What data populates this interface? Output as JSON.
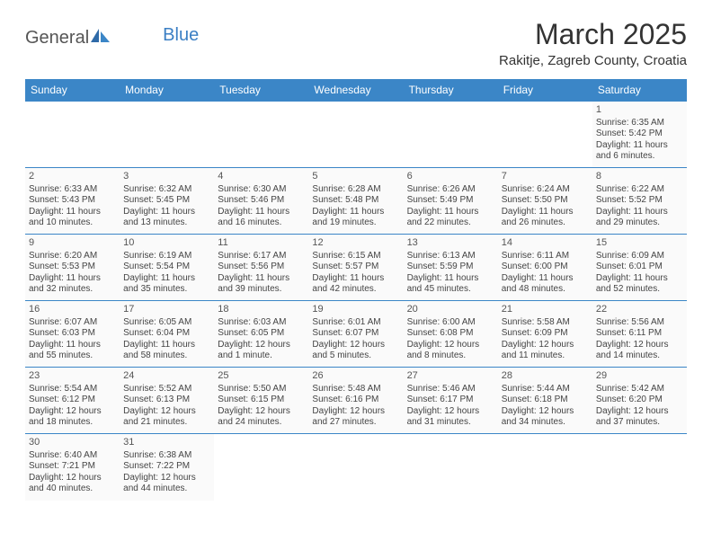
{
  "logo": {
    "part1": "General",
    "part2": "Blue"
  },
  "title": "March 2025",
  "location": "Rakitje, Zagreb County, Croatia",
  "colors": {
    "header_bg": "#3b86c7",
    "header_text": "#ffffff",
    "border": "#3b86c7",
    "cell_bg": "#fafafa",
    "text": "#444444",
    "logo_gray": "#555555",
    "logo_blue": "#3b7fc4"
  },
  "weekdays": [
    "Sunday",
    "Monday",
    "Tuesday",
    "Wednesday",
    "Thursday",
    "Friday",
    "Saturday"
  ],
  "weeks": [
    [
      null,
      null,
      null,
      null,
      null,
      null,
      {
        "n": "1",
        "sunrise": "Sunrise: 6:35 AM",
        "sunset": "Sunset: 5:42 PM",
        "daylight": "Daylight: 11 hours and 6 minutes."
      }
    ],
    [
      {
        "n": "2",
        "sunrise": "Sunrise: 6:33 AM",
        "sunset": "Sunset: 5:43 PM",
        "daylight": "Daylight: 11 hours and 10 minutes."
      },
      {
        "n": "3",
        "sunrise": "Sunrise: 6:32 AM",
        "sunset": "Sunset: 5:45 PM",
        "daylight": "Daylight: 11 hours and 13 minutes."
      },
      {
        "n": "4",
        "sunrise": "Sunrise: 6:30 AM",
        "sunset": "Sunset: 5:46 PM",
        "daylight": "Daylight: 11 hours and 16 minutes."
      },
      {
        "n": "5",
        "sunrise": "Sunrise: 6:28 AM",
        "sunset": "Sunset: 5:48 PM",
        "daylight": "Daylight: 11 hours and 19 minutes."
      },
      {
        "n": "6",
        "sunrise": "Sunrise: 6:26 AM",
        "sunset": "Sunset: 5:49 PM",
        "daylight": "Daylight: 11 hours and 22 minutes."
      },
      {
        "n": "7",
        "sunrise": "Sunrise: 6:24 AM",
        "sunset": "Sunset: 5:50 PM",
        "daylight": "Daylight: 11 hours and 26 minutes."
      },
      {
        "n": "8",
        "sunrise": "Sunrise: 6:22 AM",
        "sunset": "Sunset: 5:52 PM",
        "daylight": "Daylight: 11 hours and 29 minutes."
      }
    ],
    [
      {
        "n": "9",
        "sunrise": "Sunrise: 6:20 AM",
        "sunset": "Sunset: 5:53 PM",
        "daylight": "Daylight: 11 hours and 32 minutes."
      },
      {
        "n": "10",
        "sunrise": "Sunrise: 6:19 AM",
        "sunset": "Sunset: 5:54 PM",
        "daylight": "Daylight: 11 hours and 35 minutes."
      },
      {
        "n": "11",
        "sunrise": "Sunrise: 6:17 AM",
        "sunset": "Sunset: 5:56 PM",
        "daylight": "Daylight: 11 hours and 39 minutes."
      },
      {
        "n": "12",
        "sunrise": "Sunrise: 6:15 AM",
        "sunset": "Sunset: 5:57 PM",
        "daylight": "Daylight: 11 hours and 42 minutes."
      },
      {
        "n": "13",
        "sunrise": "Sunrise: 6:13 AM",
        "sunset": "Sunset: 5:59 PM",
        "daylight": "Daylight: 11 hours and 45 minutes."
      },
      {
        "n": "14",
        "sunrise": "Sunrise: 6:11 AM",
        "sunset": "Sunset: 6:00 PM",
        "daylight": "Daylight: 11 hours and 48 minutes."
      },
      {
        "n": "15",
        "sunrise": "Sunrise: 6:09 AM",
        "sunset": "Sunset: 6:01 PM",
        "daylight": "Daylight: 11 hours and 52 minutes."
      }
    ],
    [
      {
        "n": "16",
        "sunrise": "Sunrise: 6:07 AM",
        "sunset": "Sunset: 6:03 PM",
        "daylight": "Daylight: 11 hours and 55 minutes."
      },
      {
        "n": "17",
        "sunrise": "Sunrise: 6:05 AM",
        "sunset": "Sunset: 6:04 PM",
        "daylight": "Daylight: 11 hours and 58 minutes."
      },
      {
        "n": "18",
        "sunrise": "Sunrise: 6:03 AM",
        "sunset": "Sunset: 6:05 PM",
        "daylight": "Daylight: 12 hours and 1 minute."
      },
      {
        "n": "19",
        "sunrise": "Sunrise: 6:01 AM",
        "sunset": "Sunset: 6:07 PM",
        "daylight": "Daylight: 12 hours and 5 minutes."
      },
      {
        "n": "20",
        "sunrise": "Sunrise: 6:00 AM",
        "sunset": "Sunset: 6:08 PM",
        "daylight": "Daylight: 12 hours and 8 minutes."
      },
      {
        "n": "21",
        "sunrise": "Sunrise: 5:58 AM",
        "sunset": "Sunset: 6:09 PM",
        "daylight": "Daylight: 12 hours and 11 minutes."
      },
      {
        "n": "22",
        "sunrise": "Sunrise: 5:56 AM",
        "sunset": "Sunset: 6:11 PM",
        "daylight": "Daylight: 12 hours and 14 minutes."
      }
    ],
    [
      {
        "n": "23",
        "sunrise": "Sunrise: 5:54 AM",
        "sunset": "Sunset: 6:12 PM",
        "daylight": "Daylight: 12 hours and 18 minutes."
      },
      {
        "n": "24",
        "sunrise": "Sunrise: 5:52 AM",
        "sunset": "Sunset: 6:13 PM",
        "daylight": "Daylight: 12 hours and 21 minutes."
      },
      {
        "n": "25",
        "sunrise": "Sunrise: 5:50 AM",
        "sunset": "Sunset: 6:15 PM",
        "daylight": "Daylight: 12 hours and 24 minutes."
      },
      {
        "n": "26",
        "sunrise": "Sunrise: 5:48 AM",
        "sunset": "Sunset: 6:16 PM",
        "daylight": "Daylight: 12 hours and 27 minutes."
      },
      {
        "n": "27",
        "sunrise": "Sunrise: 5:46 AM",
        "sunset": "Sunset: 6:17 PM",
        "daylight": "Daylight: 12 hours and 31 minutes."
      },
      {
        "n": "28",
        "sunrise": "Sunrise: 5:44 AM",
        "sunset": "Sunset: 6:18 PM",
        "daylight": "Daylight: 12 hours and 34 minutes."
      },
      {
        "n": "29",
        "sunrise": "Sunrise: 5:42 AM",
        "sunset": "Sunset: 6:20 PM",
        "daylight": "Daylight: 12 hours and 37 minutes."
      }
    ],
    [
      {
        "n": "30",
        "sunrise": "Sunrise: 6:40 AM",
        "sunset": "Sunset: 7:21 PM",
        "daylight": "Daylight: 12 hours and 40 minutes."
      },
      {
        "n": "31",
        "sunrise": "Sunrise: 6:38 AM",
        "sunset": "Sunset: 7:22 PM",
        "daylight": "Daylight: 12 hours and 44 minutes."
      },
      null,
      null,
      null,
      null,
      null
    ]
  ]
}
